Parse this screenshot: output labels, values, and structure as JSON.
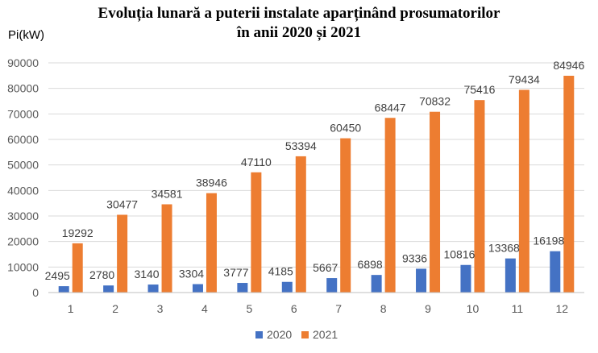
{
  "chart_data": {
    "type": "bar",
    "title": [
      "Evoluția lunară a puterii instalate aparținând prosumatorilor",
      "în anii 2020 și 2021"
    ],
    "ylabel": "Pi(kW)",
    "xlabel": "",
    "categories": [
      "1",
      "2",
      "3",
      "4",
      "5",
      "6",
      "7",
      "8",
      "9",
      "10",
      "11",
      "12"
    ],
    "ylim": [
      0,
      90000
    ],
    "yticks": [
      0,
      10000,
      20000,
      30000,
      40000,
      50000,
      60000,
      70000,
      80000,
      90000
    ],
    "grid": true,
    "legend_position": "bottom",
    "series": [
      {
        "name": "2020",
        "color": "#4472C4",
        "values": [
          2495,
          2780,
          3140,
          3304,
          3777,
          4185,
          5667,
          6898,
          9336,
          10816,
          13368,
          16198
        ]
      },
      {
        "name": "2021",
        "color": "#ED7D31",
        "values": [
          19292,
          30477,
          34581,
          38946,
          47110,
          53394,
          60450,
          68447,
          70832,
          75416,
          79434,
          84946
        ]
      }
    ]
  }
}
